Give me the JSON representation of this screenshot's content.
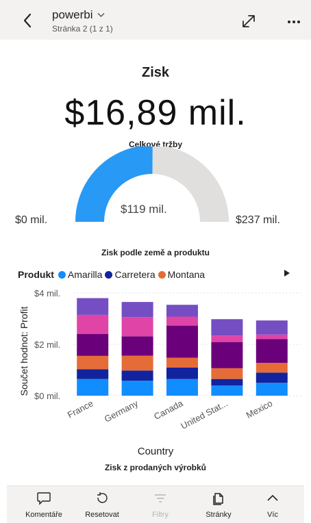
{
  "header": {
    "app_title": "powerbi",
    "page_indicator": "Stránka 2 (1 z 1)",
    "icons": [
      "back-chevron-icon",
      "dropdown-chevron-icon",
      "expand-icon",
      "more-icon"
    ]
  },
  "kpi": {
    "title": "Zisk",
    "value": "$16,89 mil."
  },
  "gauge": {
    "title": "Celkové tržby",
    "min_label": "$0 mil.",
    "max_label": "$237 mil.",
    "value_label": "$119 mil.",
    "value": 119,
    "min": 0,
    "max": 237,
    "fill_color": "#2899f5",
    "track_color": "#e1dfdd"
  },
  "chart": {
    "title": "Zisk podle země a produktu",
    "legend_title": "Produkt",
    "next_title": "Zisk z prodaných výrobků"
  },
  "chart_data": {
    "type": "bar",
    "stacked": true,
    "title": "Zisk podle země a produktu",
    "xlabel": "Country",
    "ylabel": "Součet hodnot: Profit",
    "categories": [
      "France",
      "Germany",
      "Canada",
      "United Stat...",
      "Mexico"
    ],
    "ylim": [
      0,
      4
    ],
    "yticks": [
      "$0 mil.",
      "$2 mil.",
      "$4 mil."
    ],
    "ytick_values": [
      0,
      2,
      4
    ],
    "grid": true,
    "legend_position": "top-left",
    "legend": [
      {
        "name": "Amarilla",
        "color": "#118dff"
      },
      {
        "name": "Carretera",
        "color": "#12239e"
      },
      {
        "name": "Montana",
        "color": "#e66c37"
      }
    ],
    "series": [
      {
        "color": "#118dff",
        "values": [
          0.65,
          0.58,
          0.65,
          0.4,
          0.5
        ]
      },
      {
        "color": "#12239e",
        "values": [
          0.38,
          0.4,
          0.45,
          0.25,
          0.4
        ]
      },
      {
        "color": "#e66c37",
        "values": [
          0.52,
          0.58,
          0.38,
          0.42,
          0.38
        ]
      },
      {
        "color": "#6b007b",
        "values": [
          0.85,
          0.75,
          1.25,
          1.02,
          0.92
        ]
      },
      {
        "color": "#e044a7",
        "values": [
          0.75,
          0.75,
          0.35,
          0.25,
          0.18
        ]
      },
      {
        "color": "#744ec2",
        "values": [
          0.65,
          0.59,
          0.46,
          0.64,
          0.55
        ]
      }
    ]
  },
  "bottom_bar": {
    "items": [
      {
        "label": "Komentáře",
        "icon": "comment-icon",
        "enabled": true
      },
      {
        "label": "Resetovat",
        "icon": "reset-icon",
        "enabled": true
      },
      {
        "label": "Filtry",
        "icon": "filter-icon",
        "enabled": false
      },
      {
        "label": "Stránky",
        "icon": "pages-icon",
        "enabled": true
      },
      {
        "label": "Víc",
        "icon": "chevron-up-icon",
        "enabled": true
      }
    ]
  }
}
